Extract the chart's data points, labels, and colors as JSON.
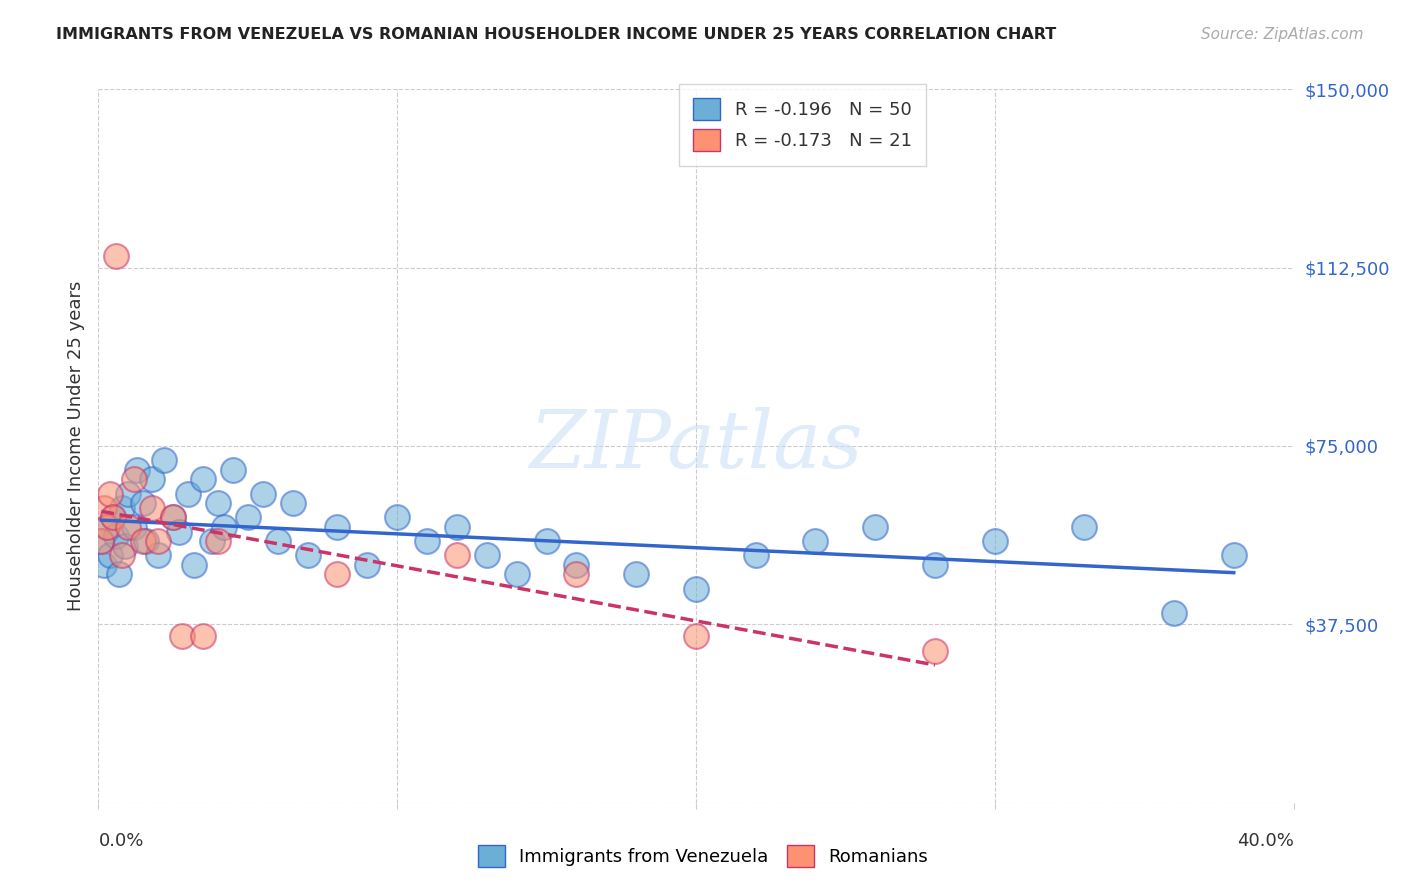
{
  "title": "IMMIGRANTS FROM VENEZUELA VS ROMANIAN HOUSEHOLDER INCOME UNDER 25 YEARS CORRELATION CHART",
  "source": "Source: ZipAtlas.com",
  "ylabel": "Householder Income Under 25 years",
  "xlim": [
    0.0,
    0.4
  ],
  "ylim": [
    0,
    150000
  ],
  "yticks": [
    0,
    37500,
    75000,
    112500,
    150000
  ],
  "ytick_labels": [
    "",
    "$37,500",
    "$75,000",
    "$112,500",
    "$150,000"
  ],
  "background_color": "#ffffff",
  "legend_venezuela_R": "-0.196",
  "legend_venezuela_N": "50",
  "legend_romanian_R": "-0.173",
  "legend_romanian_N": "21",
  "blue_color": "#6baed6",
  "pink_color": "#fc9272",
  "trend_blue": "#3366cc",
  "trend_pink": "#cc3366",
  "venezuela_x": [
    0.001,
    0.002,
    0.003,
    0.004,
    0.005,
    0.006,
    0.007,
    0.008,
    0.009,
    0.01,
    0.012,
    0.013,
    0.015,
    0.016,
    0.018,
    0.02,
    0.022,
    0.025,
    0.027,
    0.03,
    0.032,
    0.035,
    0.038,
    0.04,
    0.042,
    0.045,
    0.05,
    0.055,
    0.06,
    0.065,
    0.07,
    0.08,
    0.09,
    0.1,
    0.11,
    0.12,
    0.13,
    0.14,
    0.15,
    0.16,
    0.18,
    0.2,
    0.22,
    0.24,
    0.26,
    0.28,
    0.3,
    0.33,
    0.36,
    0.38
  ],
  "venezuela_y": [
    55000,
    50000,
    58000,
    52000,
    60000,
    56000,
    48000,
    62000,
    54000,
    65000,
    58000,
    70000,
    63000,
    55000,
    68000,
    52000,
    72000,
    60000,
    57000,
    65000,
    50000,
    68000,
    55000,
    63000,
    58000,
    70000,
    60000,
    65000,
    55000,
    63000,
    52000,
    58000,
    50000,
    60000,
    55000,
    58000,
    52000,
    48000,
    55000,
    50000,
    48000,
    45000,
    52000,
    55000,
    58000,
    50000,
    55000,
    58000,
    40000,
    52000
  ],
  "romanian_x": [
    0.001,
    0.002,
    0.003,
    0.004,
    0.005,
    0.006,
    0.008,
    0.01,
    0.012,
    0.015,
    0.018,
    0.02,
    0.025,
    0.028,
    0.035,
    0.04,
    0.08,
    0.12,
    0.16,
    0.2,
    0.28
  ],
  "romanian_y": [
    55000,
    62000,
    58000,
    65000,
    60000,
    115000,
    52000,
    58000,
    68000,
    55000,
    62000,
    55000,
    60000,
    35000,
    35000,
    55000,
    48000,
    52000,
    48000,
    35000,
    32000
  ]
}
